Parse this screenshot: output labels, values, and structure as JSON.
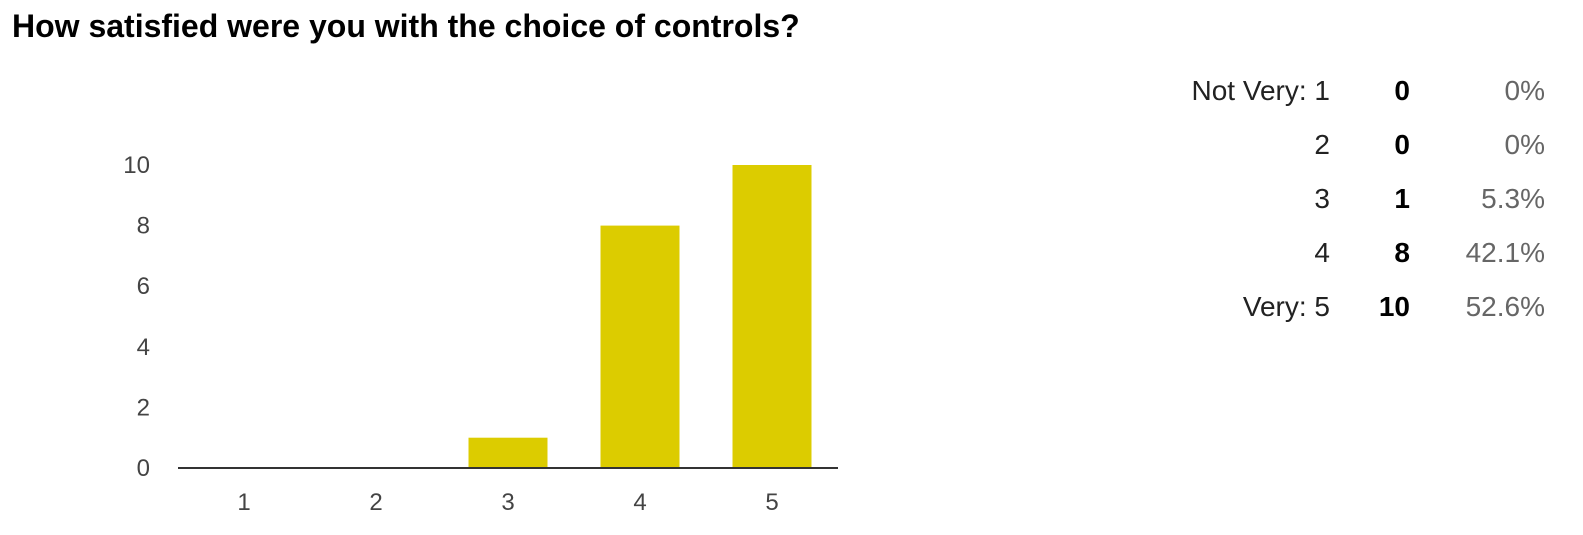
{
  "question": {
    "title": "How satisfied were you with the choice of controls?"
  },
  "chart_data": {
    "type": "bar",
    "categories": [
      "1",
      "2",
      "3",
      "4",
      "5"
    ],
    "values": [
      0,
      0,
      1,
      8,
      10
    ],
    "ylim": [
      0,
      10
    ],
    "yticks": [
      0,
      2,
      4,
      6,
      8,
      10
    ],
    "grid": false,
    "legend": "none",
    "bar_color": "#DCCC00",
    "axis_color": "#333333"
  },
  "summary": {
    "rows": [
      {
        "label": "Not Very: 1",
        "count": "0",
        "percent": "0%"
      },
      {
        "label": "2",
        "count": "0",
        "percent": "0%"
      },
      {
        "label": "3",
        "count": "1",
        "percent": "5.3%"
      },
      {
        "label": "4",
        "count": "8",
        "percent": "42.1%"
      },
      {
        "label": "Very: 5",
        "count": "10",
        "percent": "52.6%"
      }
    ]
  }
}
